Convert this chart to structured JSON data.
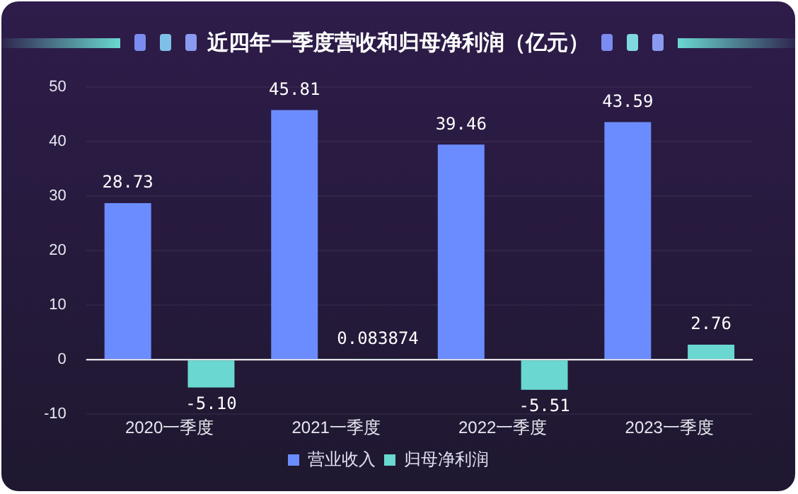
{
  "chart_data": {
    "type": "bar",
    "title": "近四年一季度营收和归母净利润（亿元）",
    "categories": [
      "2020一季度",
      "2021一季度",
      "2022一季度",
      "2023一季度"
    ],
    "series": [
      {
        "name": "营业收入",
        "color": "#6b8cff",
        "values": [
          28.73,
          45.81,
          39.46,
          43.59
        ],
        "value_labels": [
          "28.73",
          "45.81",
          "39.46",
          "43.59"
        ]
      },
      {
        "name": "归母净利润",
        "color": "#6ad8d0",
        "values": [
          -5.1,
          0.083874,
          -5.51,
          2.76
        ],
        "value_labels": [
          "-5.10",
          "0.083874",
          "-5.51",
          "2.76"
        ]
      }
    ],
    "ylim": [
      -10,
      50
    ],
    "yticks": [
      -10,
      0,
      10,
      20,
      30,
      40,
      50
    ],
    "grid": "y",
    "legend": "bottom"
  }
}
